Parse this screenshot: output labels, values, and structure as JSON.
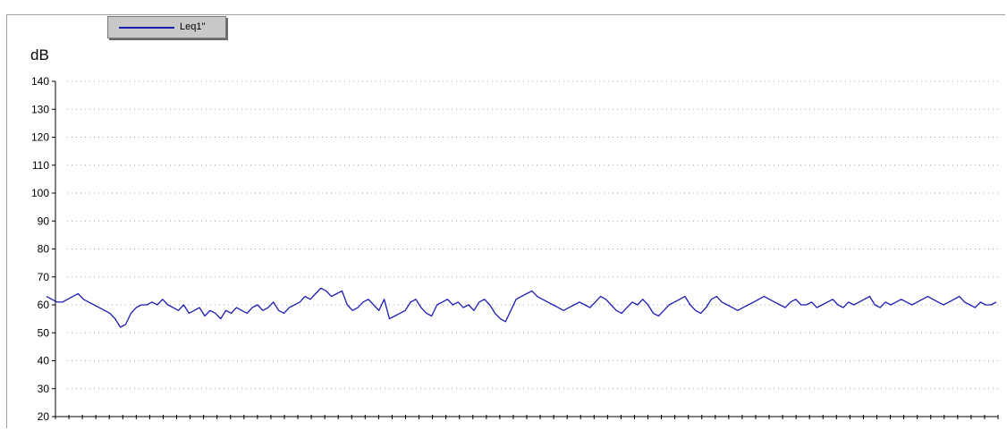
{
  "title_fragment": "",
  "legend": {
    "label": "Leq1\""
  },
  "colors": {
    "series": "#1c1cb4",
    "grid": "#a8a8a8",
    "axis": "#000000"
  },
  "chart_data": {
    "type": "line",
    "title": "",
    "ylabel": "dB",
    "xlabel": "",
    "ylim": [
      20,
      140
    ],
    "yticks": [
      20,
      30,
      40,
      50,
      60,
      70,
      80,
      90,
      100,
      110,
      120,
      130,
      140
    ],
    "grid": true,
    "legend_position": "top-left",
    "series": [
      {
        "name": "Leq1\"",
        "x": [
          0,
          1,
          2,
          3,
          4,
          5,
          6,
          7,
          8,
          9,
          10,
          11,
          12,
          13,
          14,
          15,
          16,
          17,
          18,
          19,
          20,
          21,
          22,
          23,
          24,
          25,
          26,
          27,
          28,
          29,
          30,
          31,
          32,
          33,
          34,
          35,
          36,
          37,
          38,
          39,
          40,
          41,
          42,
          43,
          44,
          45,
          46,
          47,
          48,
          49,
          50,
          51,
          52,
          53,
          54,
          55,
          56,
          57,
          58,
          59,
          60,
          61,
          62,
          63,
          64,
          65,
          66,
          67,
          68,
          69,
          70,
          71,
          72,
          73,
          74,
          75,
          76,
          77,
          78,
          79,
          80,
          81,
          82,
          83,
          84,
          85,
          86,
          87,
          88,
          89,
          90,
          91,
          92,
          93,
          94,
          95,
          96,
          97,
          98,
          99,
          100,
          101,
          102,
          103,
          104,
          105,
          106,
          107,
          108,
          109,
          110,
          111,
          112,
          113,
          114,
          115,
          116,
          117,
          118,
          119,
          120,
          121,
          122,
          123,
          124,
          125,
          126,
          127,
          128,
          129,
          130,
          131,
          132,
          133,
          134,
          135,
          136,
          137,
          138,
          139,
          140,
          141,
          142,
          143,
          144,
          145,
          146,
          147,
          148,
          149,
          150,
          151,
          152,
          153,
          154,
          155,
          156,
          157,
          158,
          159,
          160,
          161,
          162,
          163,
          164,
          165,
          166,
          167,
          168,
          169,
          170,
          171,
          172,
          173,
          174,
          175,
          176,
          177,
          178,
          179,
          180
        ],
        "values": [
          63,
          62,
          61,
          61,
          62,
          63,
          64,
          62,
          61,
          60,
          59,
          58,
          57,
          55,
          52,
          53,
          57,
          59,
          60,
          60,
          61,
          60,
          62,
          60,
          59,
          58,
          60,
          57,
          58,
          59,
          56,
          58,
          57,
          55,
          58,
          57,
          59,
          58,
          57,
          59,
          60,
          58,
          59,
          61,
          58,
          57,
          59,
          60,
          61,
          63,
          62,
          64,
          66,
          65,
          63,
          64,
          65,
          60,
          58,
          59,
          61,
          62,
          60,
          58,
          62,
          55,
          56,
          57,
          58,
          61,
          62,
          59,
          57,
          56,
          60,
          61,
          62,
          60,
          61,
          59,
          60,
          58,
          61,
          62,
          60,
          57,
          55,
          54,
          58,
          62,
          63,
          64,
          65,
          63,
          62,
          61,
          60,
          59,
          58,
          59,
          60,
          61,
          60,
          59,
          61,
          63,
          62,
          60,
          58,
          57,
          59,
          61,
          60,
          62,
          60,
          57,
          56,
          58,
          60,
          61,
          62,
          63,
          60,
          58,
          57,
          59,
          62,
          63,
          61,
          60,
          59,
          58,
          59,
          60,
          61,
          62,
          63,
          62,
          61,
          60,
          59,
          61,
          62,
          60,
          60,
          61,
          59,
          60,
          61,
          62,
          60,
          59,
          61,
          60,
          61,
          62,
          63,
          60,
          59,
          61,
          60,
          61,
          62,
          61,
          60,
          61,
          62,
          63,
          62,
          61,
          60,
          61,
          62,
          63,
          61,
          60,
          59,
          61,
          60,
          60,
          61
        ]
      }
    ]
  }
}
